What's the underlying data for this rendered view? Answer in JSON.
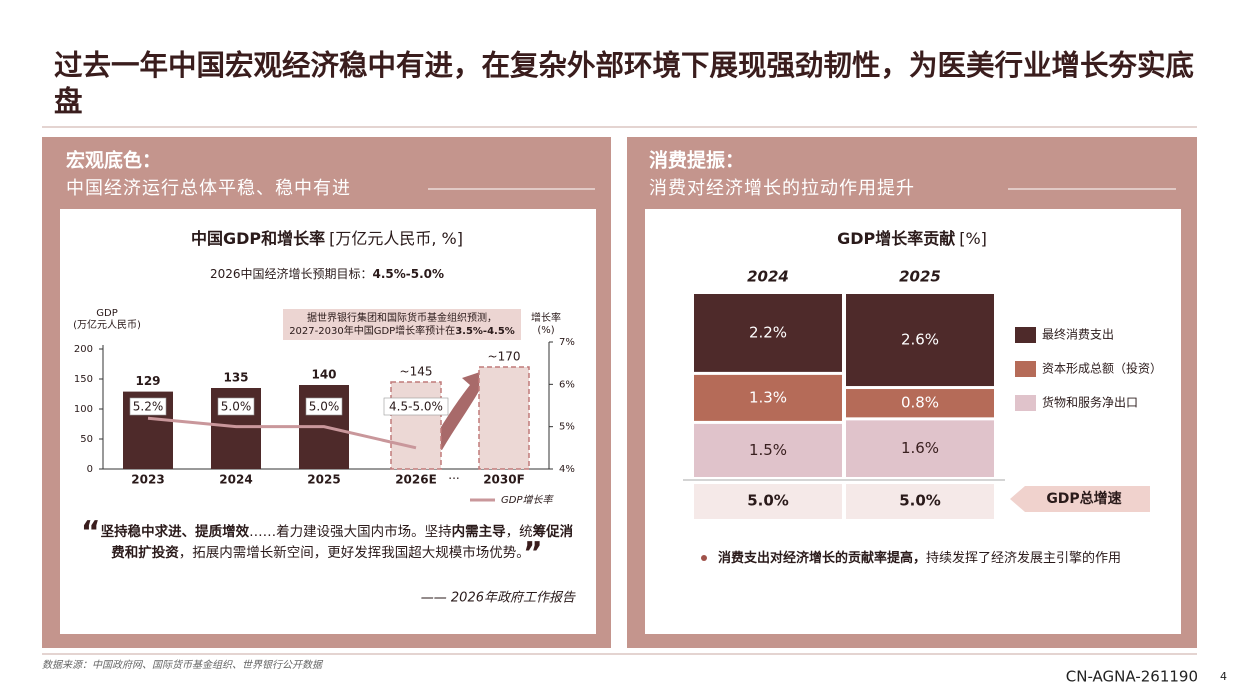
{
  "header": {
    "title": "过去一年中国宏观经济稳中有进，在复杂外部环境下展现强劲韧性，为医美行业增长夯实底盘"
  },
  "left": {
    "heading": "宏观底色：",
    "subheading": "中国经济运行总体平稳、稳中有进",
    "quote_open": "“",
    "quote": [
      {
        "text": "坚持稳中求进、提质增效",
        "bold": true
      },
      {
        "text": "……着力建设强大国内市场。坚持",
        "bold": false
      },
      {
        "text": "内需主导",
        "bold": true
      },
      {
        "text": "，统",
        "bold": false
      },
      {
        "text": "筹促消费和扩投资",
        "bold": true
      },
      {
        "text": "，拓展内需增长新空间，更好发挥我国超大规模市场优势。",
        "bold": false
      }
    ],
    "quote_close": "”",
    "quote_source": "—— 2026年政府工作报告"
  },
  "right": {
    "heading": "消费提振：",
    "subheading": "消费对经济增长的拉动作用提升",
    "bullet_bold": "消费支出对经济增长的贡献率提高，",
    "bullet_rest": "持续发挥了经济发展主引擎的作用"
  },
  "chart_data": [
    {
      "type": "bar_line",
      "title": "中国GDP和增长率",
      "unit": "[万亿元人民币, %]",
      "subtitle": "2026中国经济增长预期目标：",
      "subtitle_value": "4.5%-5.0%",
      "ylabel": "(万亿元人民币)",
      "y2label": [
        "增长率",
        "(%)"
      ],
      "categories": [
        "2023",
        "2024",
        "2025",
        "2026E",
        "2030F"
      ],
      "gap_label": "···",
      "projected": [
        false,
        false,
        false,
        true,
        true
      ],
      "annotation": {
        "line1": "据世界银行集团和国际货币基金组织预测，",
        "line2": "2027-2030年中国GDP增长率预计在",
        "line2_bold": "3.5%-4.5%"
      },
      "series": [
        {
          "name": "GDP",
          "type": "bar",
          "color": "#4e2a2a",
          "projected_color": "#ecd8d5",
          "projected_stroke": "#c07a7a",
          "values": [
            129,
            135,
            140,
            145,
            170
          ],
          "value_labels": [
            "129",
            "135",
            "140",
            "~145",
            "~170"
          ]
        },
        {
          "name": "GDP增长率",
          "type": "line",
          "axis": "y2",
          "color": "#c9979b",
          "values": [
            5.2,
            5.0,
            5.0,
            4.5,
            null
          ],
          "value_labels": [
            "5.2%",
            "5.0%",
            "5.0%",
            "4.5-5.0%",
            null
          ]
        }
      ],
      "ylim": [
        0,
        200
      ],
      "yticks": [
        0,
        50,
        100,
        150,
        200
      ],
      "y2lim": [
        4,
        7
      ],
      "y2ticks": [
        {
          "value": 4,
          "label": "4%"
        },
        {
          "value": 5,
          "label": "5%"
        },
        {
          "value": 6,
          "label": "6%"
        },
        {
          "value": 7,
          "label": "7%"
        }
      ]
    },
    {
      "type": "stacked_bar",
      "title": "GDP增长率贡献",
      "unit": "[%]",
      "categories": [
        "2024",
        "2025"
      ],
      "series": [
        {
          "name": "最终消费支出",
          "color": "#4e2a2a",
          "label_color": "#ffffff",
          "values": [
            2.2,
            2.6
          ],
          "value_labels": [
            "2.2%",
            "2.6%"
          ]
        },
        {
          "name": "资本形成总额（投资）",
          "color": "#b56b58",
          "label_color": "#ffffff",
          "values": [
            1.3,
            0.8
          ],
          "value_labels": [
            "1.3%",
            "0.8%"
          ]
        },
        {
          "name": "货物和服务净出口",
          "color": "#e0c3cb",
          "label_color": "#3a2020",
          "values": [
            1.5,
            1.6
          ],
          "value_labels": [
            "1.5%",
            "1.6%"
          ]
        }
      ],
      "total_label": "GDP总增速",
      "totals": [
        5.0,
        5.0
      ],
      "total_labels": [
        "5.0%",
        "5.0%"
      ]
    }
  ],
  "footer": {
    "source": "数据来源：中国政府网、国际货币基金组织、世界银行公开数据",
    "code": "CN-AGNA-261190",
    "page": "4"
  }
}
